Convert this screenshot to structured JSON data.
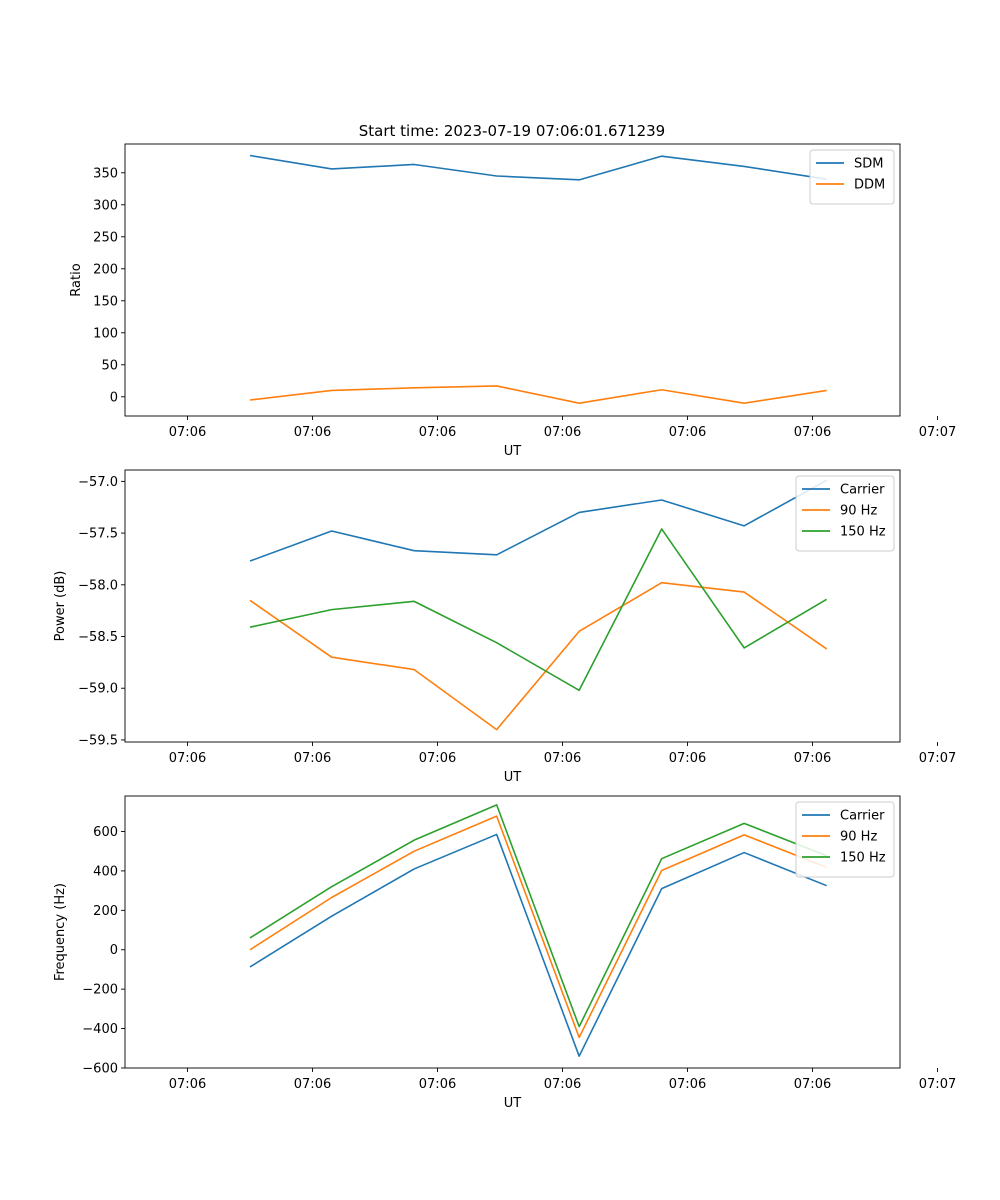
{
  "figure_title": "Start time: 2023-07-19 07:06:01.671239",
  "chart_data": [
    {
      "type": "line",
      "title": "Start time: 2023-07-19 07:06:01.671239",
      "xlabel": "UT",
      "ylabel": "Ratio",
      "ylim": [
        -30,
        395
      ],
      "yticks": [
        0,
        50,
        100,
        150,
        200,
        250,
        300,
        350
      ],
      "yticklabels": [
        "0",
        "50",
        "100",
        "150",
        "200",
        "250",
        "300",
        "350"
      ],
      "xlim": [
        -0.75,
        8.55
      ],
      "xticks": [
        0,
        1.5,
        3,
        4.5,
        6,
        7.5,
        9
      ],
      "xticklabels": [
        "07:06",
        "07:06",
        "07:06",
        "07:06",
        "07:06",
        "07:06",
        "07:07"
      ],
      "x": [
        0.75,
        1.73,
        2.72,
        3.71,
        4.7,
        5.69,
        6.68,
        7.67
      ],
      "series": [
        {
          "name": "SDM",
          "color": "#1f77b4",
          "values": [
            377,
            356,
            363,
            345,
            339,
            376,
            360,
            340
          ]
        },
        {
          "name": "DDM",
          "color": "#ff7f0e",
          "values": [
            -5,
            10,
            14,
            17,
            -10,
            11,
            -10,
            10
          ]
        }
      ],
      "legend": "top-right",
      "grid": false
    },
    {
      "type": "line",
      "title": "",
      "xlabel": "UT",
      "ylabel": "Power (dB)",
      "ylim": [
        -59.52,
        -56.89
      ],
      "yticks": [
        -59.5,
        -59.0,
        -58.5,
        -58.0,
        -57.5,
        -57.0
      ],
      "yticklabels": [
        "−59.5",
        "−59.0",
        "−58.5",
        "−58.0",
        "−57.5",
        "−57.0"
      ],
      "xlim": [
        -0.75,
        8.55
      ],
      "xticks": [
        0,
        1.5,
        3,
        4.5,
        6,
        7.5,
        9
      ],
      "xticklabels": [
        "07:06",
        "07:06",
        "07:06",
        "07:06",
        "07:06",
        "07:06",
        "07:07"
      ],
      "x": [
        0.75,
        1.73,
        2.72,
        3.71,
        4.7,
        5.69,
        6.68,
        7.67
      ],
      "series": [
        {
          "name": "Carrier",
          "color": "#1f77b4",
          "values": [
            -57.77,
            -57.48,
            -57.67,
            -57.71,
            -57.3,
            -57.18,
            -57.43,
            -56.99
          ]
        },
        {
          "name": "90 Hz",
          "color": "#ff7f0e",
          "values": [
            -58.15,
            -58.7,
            -58.82,
            -59.4,
            -58.45,
            -57.98,
            -58.07,
            -58.62
          ]
        },
        {
          "name": "150 Hz",
          "color": "#2ca02c",
          "values": [
            -58.41,
            -58.24,
            -58.16,
            -58.56,
            -59.02,
            -57.46,
            -58.61,
            -58.14
          ]
        }
      ],
      "legend": "top-right",
      "grid": false
    },
    {
      "type": "line",
      "title": "",
      "xlabel": "UT",
      "ylabel": "Frequency (Hz)",
      "ylim": [
        -600,
        780
      ],
      "yticks": [
        -600,
        -400,
        -200,
        0,
        200,
        400,
        600
      ],
      "yticklabels": [
        "−600",
        "−400",
        "−200",
        "0",
        "200",
        "400",
        "600"
      ],
      "xlim": [
        -0.75,
        8.55
      ],
      "xticks": [
        0,
        1.5,
        3,
        4.5,
        6,
        7.5,
        9
      ],
      "xticklabels": [
        "07:06",
        "07:06",
        "07:06",
        "07:06",
        "07:06",
        "07:06",
        "07:07"
      ],
      "x": [
        0.75,
        1.73,
        2.72,
        3.71,
        4.7,
        5.69,
        6.68,
        7.67
      ],
      "series": [
        {
          "name": "Carrier",
          "color": "#1f77b4",
          "values": [
            -87,
            170,
            410,
            585,
            -540,
            310,
            493,
            325
          ]
        },
        {
          "name": "90 Hz",
          "color": "#ff7f0e",
          "values": [
            0,
            265,
            500,
            678,
            -445,
            402,
            583,
            418
          ]
        },
        {
          "name": "150 Hz",
          "color": "#2ca02c",
          "values": [
            60,
            320,
            556,
            735,
            -390,
            462,
            641,
            477
          ]
        }
      ],
      "legend": "top-right",
      "grid": false
    }
  ]
}
